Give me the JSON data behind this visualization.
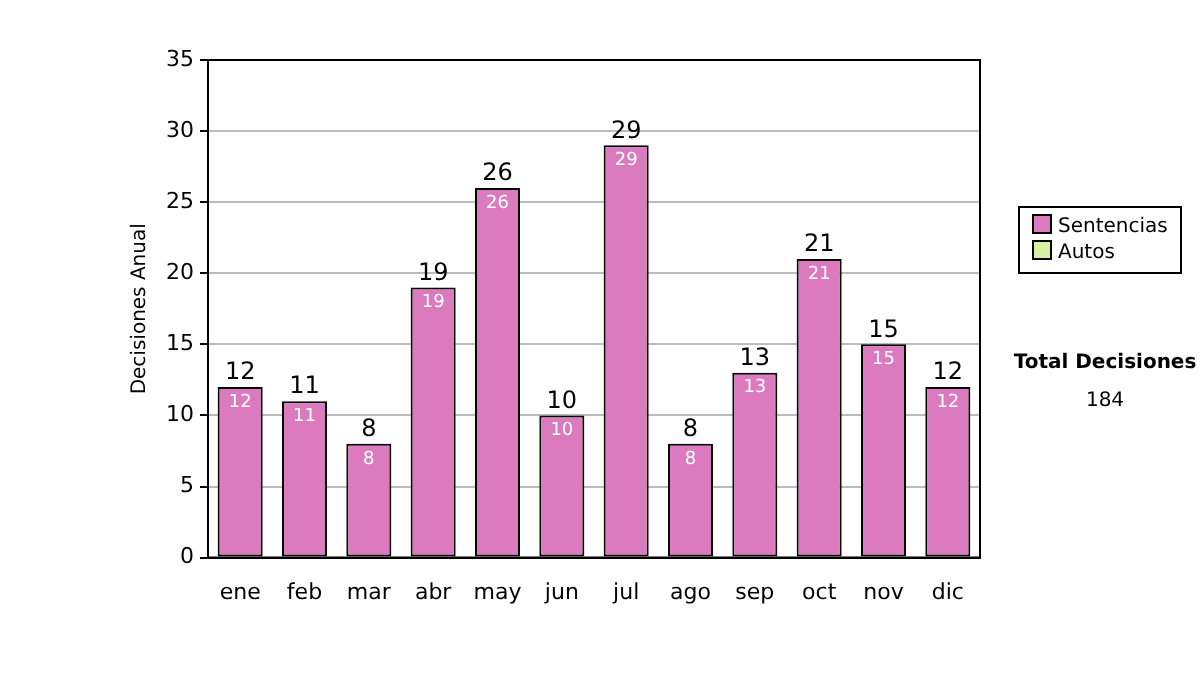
{
  "chart_data": {
    "type": "bar",
    "stacked": true,
    "ylabel": "Decisiones Anual",
    "categories": [
      "ene",
      "feb",
      "mar",
      "abr",
      "may",
      "jun",
      "jul",
      "ago",
      "sep",
      "oct",
      "nov",
      "dic"
    ],
    "series": [
      {
        "name": "Sentencias",
        "color": "#dc7abf",
        "values": [
          12,
          11,
          8,
          19,
          26,
          10,
          29,
          8,
          13,
          21,
          15,
          12
        ],
        "value_labels": [
          "12",
          "11",
          "8",
          "19",
          "26",
          "10",
          "29",
          "8",
          "13",
          "21",
          "15",
          "12"
        ]
      },
      {
        "name": "Autos",
        "color": "#d8f0a0",
        "values": [
          0,
          0,
          0,
          0,
          0,
          0,
          0,
          0,
          0,
          0,
          0,
          0
        ]
      }
    ],
    "totals": [
      "12",
      "11",
      "8",
      "19",
      "26",
      "10",
      "29",
      "8",
      "13",
      "21",
      "15",
      "12"
    ],
    "ylim": [
      0,
      35
    ],
    "yticks": [
      0,
      5,
      10,
      15,
      20,
      25,
      30,
      35
    ],
    "grid": "y",
    "legend": "right",
    "annotations": [
      "Total Decisiones",
      "184"
    ]
  }
}
